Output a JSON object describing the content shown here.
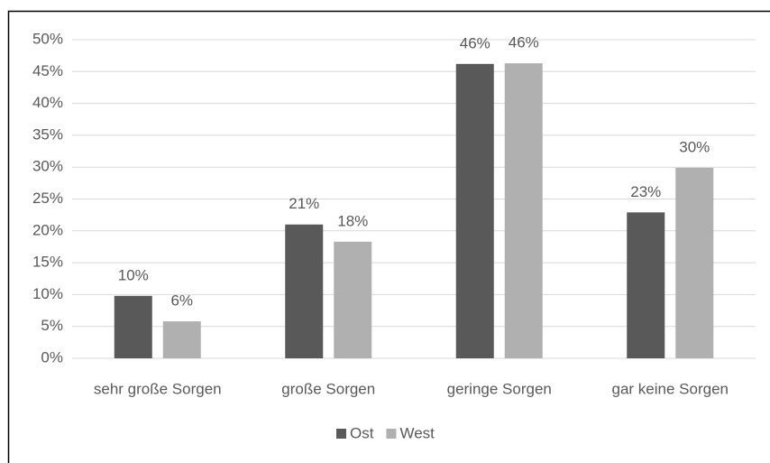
{
  "chart_data": {
    "type": "bar",
    "categories": [
      "sehr große Sorgen",
      "große Sorgen",
      "geringe Sorgen",
      "gar keine Sorgen"
    ],
    "series": [
      {
        "name": "Ost",
        "color": "#595959",
        "values": [
          9.8,
          21.0,
          46.2,
          22.9
        ],
        "value_labels": [
          "10%",
          "21%",
          "46%",
          "23%"
        ]
      },
      {
        "name": "West",
        "color": "#b0b0b0",
        "values": [
          5.8,
          18.3,
          46.3,
          29.9
        ],
        "value_labels": [
          "6%",
          "18%",
          "46%",
          "30%"
        ]
      }
    ],
    "ylim": [
      0,
      50
    ],
    "yticks": [
      {
        "value": 0,
        "label": "0%"
      },
      {
        "value": 5,
        "label": "5%"
      },
      {
        "value": 10,
        "label": "10%"
      },
      {
        "value": 15,
        "label": "15%"
      },
      {
        "value": 20,
        "label": "20%"
      },
      {
        "value": 25,
        "label": "25%"
      },
      {
        "value": 30,
        "label": "30%"
      },
      {
        "value": 35,
        "label": "35%"
      },
      {
        "value": 40,
        "label": "40%"
      },
      {
        "value": 45,
        "label": "45%"
      },
      {
        "value": 50,
        "label": "50%"
      }
    ],
    "grid": true,
    "legend": "bottom"
  }
}
